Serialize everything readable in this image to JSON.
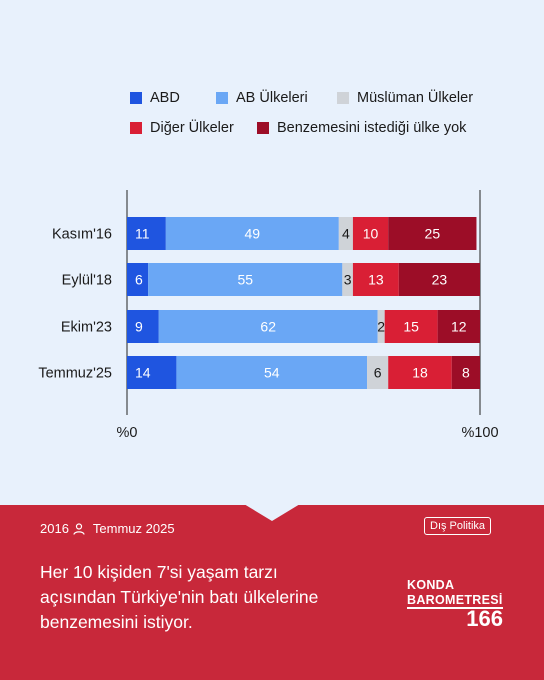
{
  "chart_data": {
    "type": "bar",
    "orientation": "horizontal",
    "stacked": true,
    "categories": [
      "Kasım'16",
      "Eylül'18",
      "Ekim'23",
      "Temmuz'25"
    ],
    "series": [
      {
        "name": "ABD",
        "color": "#1f55e0",
        "values": [
          11,
          6,
          9,
          14
        ]
      },
      {
        "name": "AB Ülkeleri",
        "color": "#6aa7f5",
        "values": [
          49,
          55,
          62,
          54
        ]
      },
      {
        "name": "Müslüman Ülkeler",
        "color": "#cfd3d8",
        "values": [
          4,
          3,
          2,
          6
        ]
      },
      {
        "name": "Diğer Ülkeler",
        "color": "#d91f35",
        "values": [
          10,
          13,
          15,
          18
        ]
      },
      {
        "name": "Benzemesini istediği ülke yok",
        "color": "#9c0d27",
        "values": [
          25,
          23,
          12,
          8
        ]
      }
    ],
    "xlim": [
      0,
      100
    ],
    "xaxis_labels": [
      "%0",
      "%100"
    ],
    "legend_position": "top"
  },
  "footer": {
    "meta_year": "2016",
    "meta_date": "Temmuz 2025",
    "tag": "Dış Politika",
    "headline": "Her 10 kişiden 7'si yaşam tarzı açısından Türkiye'nin batı ülkelerine benzemesini istiyor.",
    "brand_line1": "KONDA",
    "brand_line2": "BAROMETRESİ",
    "issue_number": "166"
  }
}
